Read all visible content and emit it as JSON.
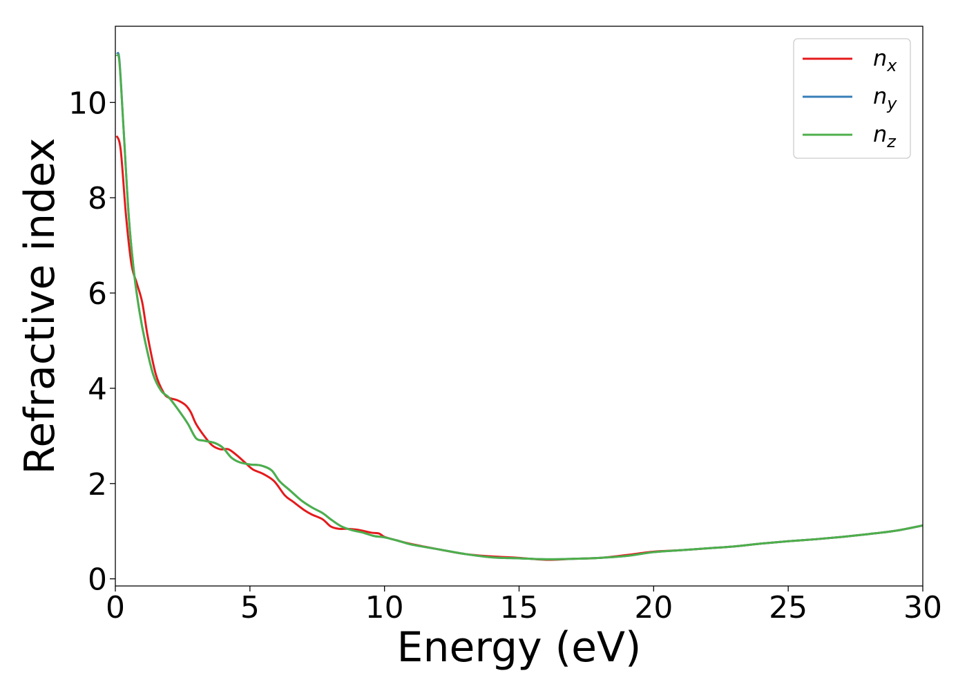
{
  "chart_data": {
    "type": "line",
    "title": "",
    "xlabel": "Energy (eV)",
    "ylabel": "Refractive index",
    "xlim": [
      0,
      30
    ],
    "ylim": [
      -0.15,
      11.6
    ],
    "xticks": [
      0,
      5,
      10,
      15,
      20,
      25,
      30
    ],
    "yticks": [
      0,
      2,
      4,
      6,
      8,
      10
    ],
    "grid": false,
    "legend_position": "top-right",
    "series": [
      {
        "name": "n_x",
        "legend_base": "n",
        "legend_sub": "x",
        "color": "#e41a1c",
        "x": [
          0.05,
          0.2,
          0.4,
          0.6,
          0.8,
          1.0,
          1.2,
          1.5,
          1.8,
          2.0,
          2.3,
          2.6,
          2.8,
          3.0,
          3.3,
          3.6,
          3.9,
          4.2,
          4.5,
          4.8,
          5.1,
          5.5,
          5.9,
          6.3,
          6.6,
          7.0,
          7.3,
          7.7,
          8.0,
          8.3,
          8.6,
          9.0,
          9.5,
          9.8,
          10.0,
          10.5,
          11.0,
          12.0,
          13.0,
          14.0,
          15.0,
          16.0,
          17.0,
          18.0,
          19.0,
          20.0,
          21.0,
          22.0,
          23.0,
          24.0,
          25.0,
          26.0,
          27.0,
          28.0,
          29.0,
          30.0
        ],
        "y": [
          9.3,
          9.0,
          7.6,
          6.6,
          6.2,
          5.8,
          5.1,
          4.3,
          3.9,
          3.8,
          3.75,
          3.65,
          3.5,
          3.25,
          3.0,
          2.8,
          2.72,
          2.72,
          2.6,
          2.45,
          2.3,
          2.2,
          2.05,
          1.75,
          1.62,
          1.45,
          1.35,
          1.25,
          1.1,
          1.05,
          1.05,
          1.03,
          0.97,
          0.95,
          0.88,
          0.8,
          0.73,
          0.62,
          0.52,
          0.47,
          0.44,
          0.4,
          0.42,
          0.44,
          0.5,
          0.57,
          0.6,
          0.64,
          0.68,
          0.74,
          0.79,
          0.83,
          0.88,
          0.94,
          1.01,
          1.12
        ]
      },
      {
        "name": "n_y",
        "legend_base": "n",
        "legend_sub": "y",
        "color": "#377eb8",
        "x": [
          0.05,
          0.15,
          0.3,
          0.5,
          0.7,
          0.9,
          1.1,
          1.4,
          1.7,
          2.0,
          2.4,
          2.7,
          3.0,
          3.3,
          3.7,
          4.0,
          4.3,
          4.6,
          5.0,
          5.4,
          5.8,
          6.1,
          6.5,
          6.9,
          7.3,
          7.7,
          8.0,
          8.4,
          8.8,
          9.2,
          9.6,
          10.0,
          10.5,
          11.0,
          12.0,
          13.0,
          14.0,
          15.0,
          16.0,
          17.0,
          18.0,
          19.0,
          20.0,
          21.0,
          22.0,
          23.0,
          24.0,
          25.0,
          26.0,
          27.0,
          28.0,
          29.0,
          30.0
        ],
        "y": [
          11.0,
          10.9,
          9.5,
          7.6,
          6.4,
          5.6,
          5.0,
          4.3,
          3.95,
          3.8,
          3.5,
          3.25,
          2.95,
          2.9,
          2.85,
          2.75,
          2.55,
          2.45,
          2.4,
          2.38,
          2.28,
          2.05,
          1.85,
          1.65,
          1.5,
          1.38,
          1.25,
          1.1,
          1.02,
          0.97,
          0.9,
          0.87,
          0.8,
          0.72,
          0.62,
          0.52,
          0.45,
          0.43,
          0.41,
          0.42,
          0.44,
          0.48,
          0.56,
          0.6,
          0.64,
          0.68,
          0.74,
          0.79,
          0.83,
          0.88,
          0.94,
          1.01,
          1.12
        ]
      },
      {
        "name": "n_z",
        "legend_base": "n",
        "legend_sub": "z",
        "color": "#4daf4a",
        "x": [
          0.05,
          0.15,
          0.3,
          0.5,
          0.7,
          0.9,
          1.1,
          1.4,
          1.7,
          2.0,
          2.4,
          2.7,
          3.0,
          3.3,
          3.7,
          4.0,
          4.3,
          4.6,
          5.0,
          5.4,
          5.8,
          6.1,
          6.5,
          6.9,
          7.3,
          7.7,
          8.0,
          8.4,
          8.8,
          9.2,
          9.6,
          10.0,
          10.5,
          11.0,
          12.0,
          13.0,
          14.0,
          15.0,
          16.0,
          17.0,
          18.0,
          19.0,
          20.0,
          21.0,
          22.0,
          23.0,
          24.0,
          25.0,
          26.0,
          27.0,
          28.0,
          29.0,
          30.0
        ],
        "y": [
          11.0,
          10.85,
          9.5,
          7.6,
          6.4,
          5.6,
          5.0,
          4.3,
          3.95,
          3.8,
          3.5,
          3.25,
          2.95,
          2.9,
          2.85,
          2.75,
          2.55,
          2.45,
          2.4,
          2.38,
          2.28,
          2.05,
          1.85,
          1.65,
          1.5,
          1.38,
          1.25,
          1.1,
          1.02,
          0.97,
          0.9,
          0.87,
          0.8,
          0.72,
          0.62,
          0.52,
          0.45,
          0.43,
          0.41,
          0.42,
          0.44,
          0.48,
          0.56,
          0.6,
          0.64,
          0.68,
          0.74,
          0.79,
          0.83,
          0.88,
          0.94,
          1.01,
          1.12
        ]
      }
    ]
  }
}
